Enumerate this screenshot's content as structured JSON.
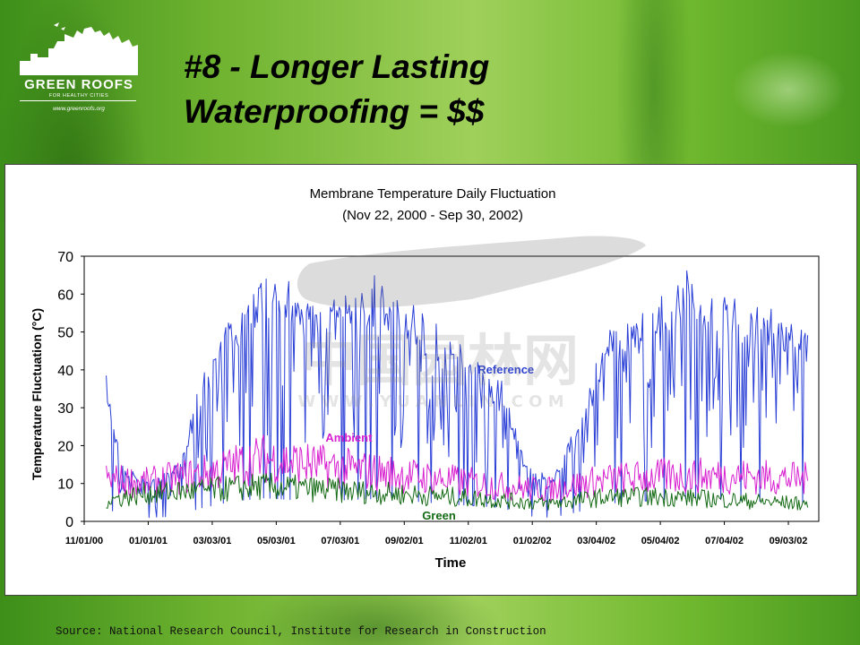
{
  "slide": {
    "title_line1": "#8 - Longer Lasting",
    "title_line2": "Waterproofing = $$",
    "source": "Source: National Research Council, Institute for Research in Construction"
  },
  "logo": {
    "title": "GREEN ROOFS",
    "subtitle": "FOR HEALTHY CITIES",
    "url": "www.greenroofs.org"
  },
  "watermark": {
    "text_cn": "中国园林网",
    "text_url": "W W W . Y U A N L I N . C O M"
  },
  "colors": {
    "reference": "#2a3fd6",
    "ambient": "#d81fd0",
    "green": "#146a14",
    "axis": "#000000"
  },
  "chart_data": {
    "type": "line",
    "title": "Membrane Temperature Daily Fluctuation",
    "subtitle": "(Nov 22, 2000 - Sep 30, 2002)",
    "xlabel": "Time",
    "ylabel": "Temperature Fluctuation (°C)",
    "ylim": [
      0,
      70
    ],
    "yticks": [
      0,
      10,
      20,
      30,
      40,
      50,
      60,
      70
    ],
    "xlim": [
      0,
      700
    ],
    "xticks": [
      {
        "day": 0,
        "label": "11/01/00"
      },
      {
        "day": 61,
        "label": "01/01/01"
      },
      {
        "day": 122,
        "label": "03/03/01"
      },
      {
        "day": 183,
        "label": "05/03/01"
      },
      {
        "day": 244,
        "label": "07/03/01"
      },
      {
        "day": 305,
        "label": "09/02/01"
      },
      {
        "day": 366,
        "label": "11/02/01"
      },
      {
        "day": 427,
        "label": "01/02/02"
      },
      {
        "day": 488,
        "label": "03/04/02"
      },
      {
        "day": 549,
        "label": "05/04/02"
      },
      {
        "day": 610,
        "label": "07/04/02"
      },
      {
        "day": 671,
        "label": "09/03/02"
      }
    ],
    "series": [
      {
        "name": "Reference",
        "label_at": [
          375,
          39
        ],
        "envelope": [
          {
            "day": 21,
            "value": 37
          },
          {
            "day": 35,
            "value": 15
          },
          {
            "day": 60,
            "value": 10
          },
          {
            "day": 90,
            "value": 14
          },
          {
            "day": 110,
            "value": 35
          },
          {
            "day": 140,
            "value": 52
          },
          {
            "day": 170,
            "value": 62
          },
          {
            "day": 200,
            "value": 57
          },
          {
            "day": 240,
            "value": 56
          },
          {
            "day": 280,
            "value": 60
          },
          {
            "day": 320,
            "value": 52
          },
          {
            "day": 350,
            "value": 45
          },
          {
            "day": 380,
            "value": 40
          },
          {
            "day": 400,
            "value": 35
          },
          {
            "day": 420,
            "value": 15
          },
          {
            "day": 445,
            "value": 10
          },
          {
            "day": 470,
            "value": 25
          },
          {
            "day": 500,
            "value": 48
          },
          {
            "day": 540,
            "value": 55
          },
          {
            "day": 580,
            "value": 62
          },
          {
            "day": 620,
            "value": 55
          },
          {
            "day": 660,
            "value": 52
          },
          {
            "day": 690,
            "value": 48
          }
        ]
      },
      {
        "name": "Ambient",
        "label_at": [
          230,
          21
        ],
        "envelope": [
          {
            "day": 21,
            "value": 12
          },
          {
            "day": 60,
            "value": 11
          },
          {
            "day": 120,
            "value": 14
          },
          {
            "day": 170,
            "value": 18
          },
          {
            "day": 220,
            "value": 16
          },
          {
            "day": 280,
            "value": 14
          },
          {
            "day": 340,
            "value": 12
          },
          {
            "day": 400,
            "value": 10
          },
          {
            "day": 440,
            "value": 9
          },
          {
            "day": 500,
            "value": 12
          },
          {
            "day": 560,
            "value": 13
          },
          {
            "day": 620,
            "value": 13
          },
          {
            "day": 690,
            "value": 12
          }
        ]
      },
      {
        "name": "Green",
        "label_at": [
          322,
          0.5
        ],
        "envelope": [
          {
            "day": 21,
            "value": 6
          },
          {
            "day": 60,
            "value": 8
          },
          {
            "day": 120,
            "value": 9
          },
          {
            "day": 170,
            "value": 10
          },
          {
            "day": 230,
            "value": 9
          },
          {
            "day": 290,
            "value": 8
          },
          {
            "day": 350,
            "value": 7
          },
          {
            "day": 400,
            "value": 6
          },
          {
            "day": 440,
            "value": 5
          },
          {
            "day": 500,
            "value": 7
          },
          {
            "day": 560,
            "value": 7
          },
          {
            "day": 620,
            "value": 6
          },
          {
            "day": 690,
            "value": 5
          }
        ]
      }
    ]
  }
}
